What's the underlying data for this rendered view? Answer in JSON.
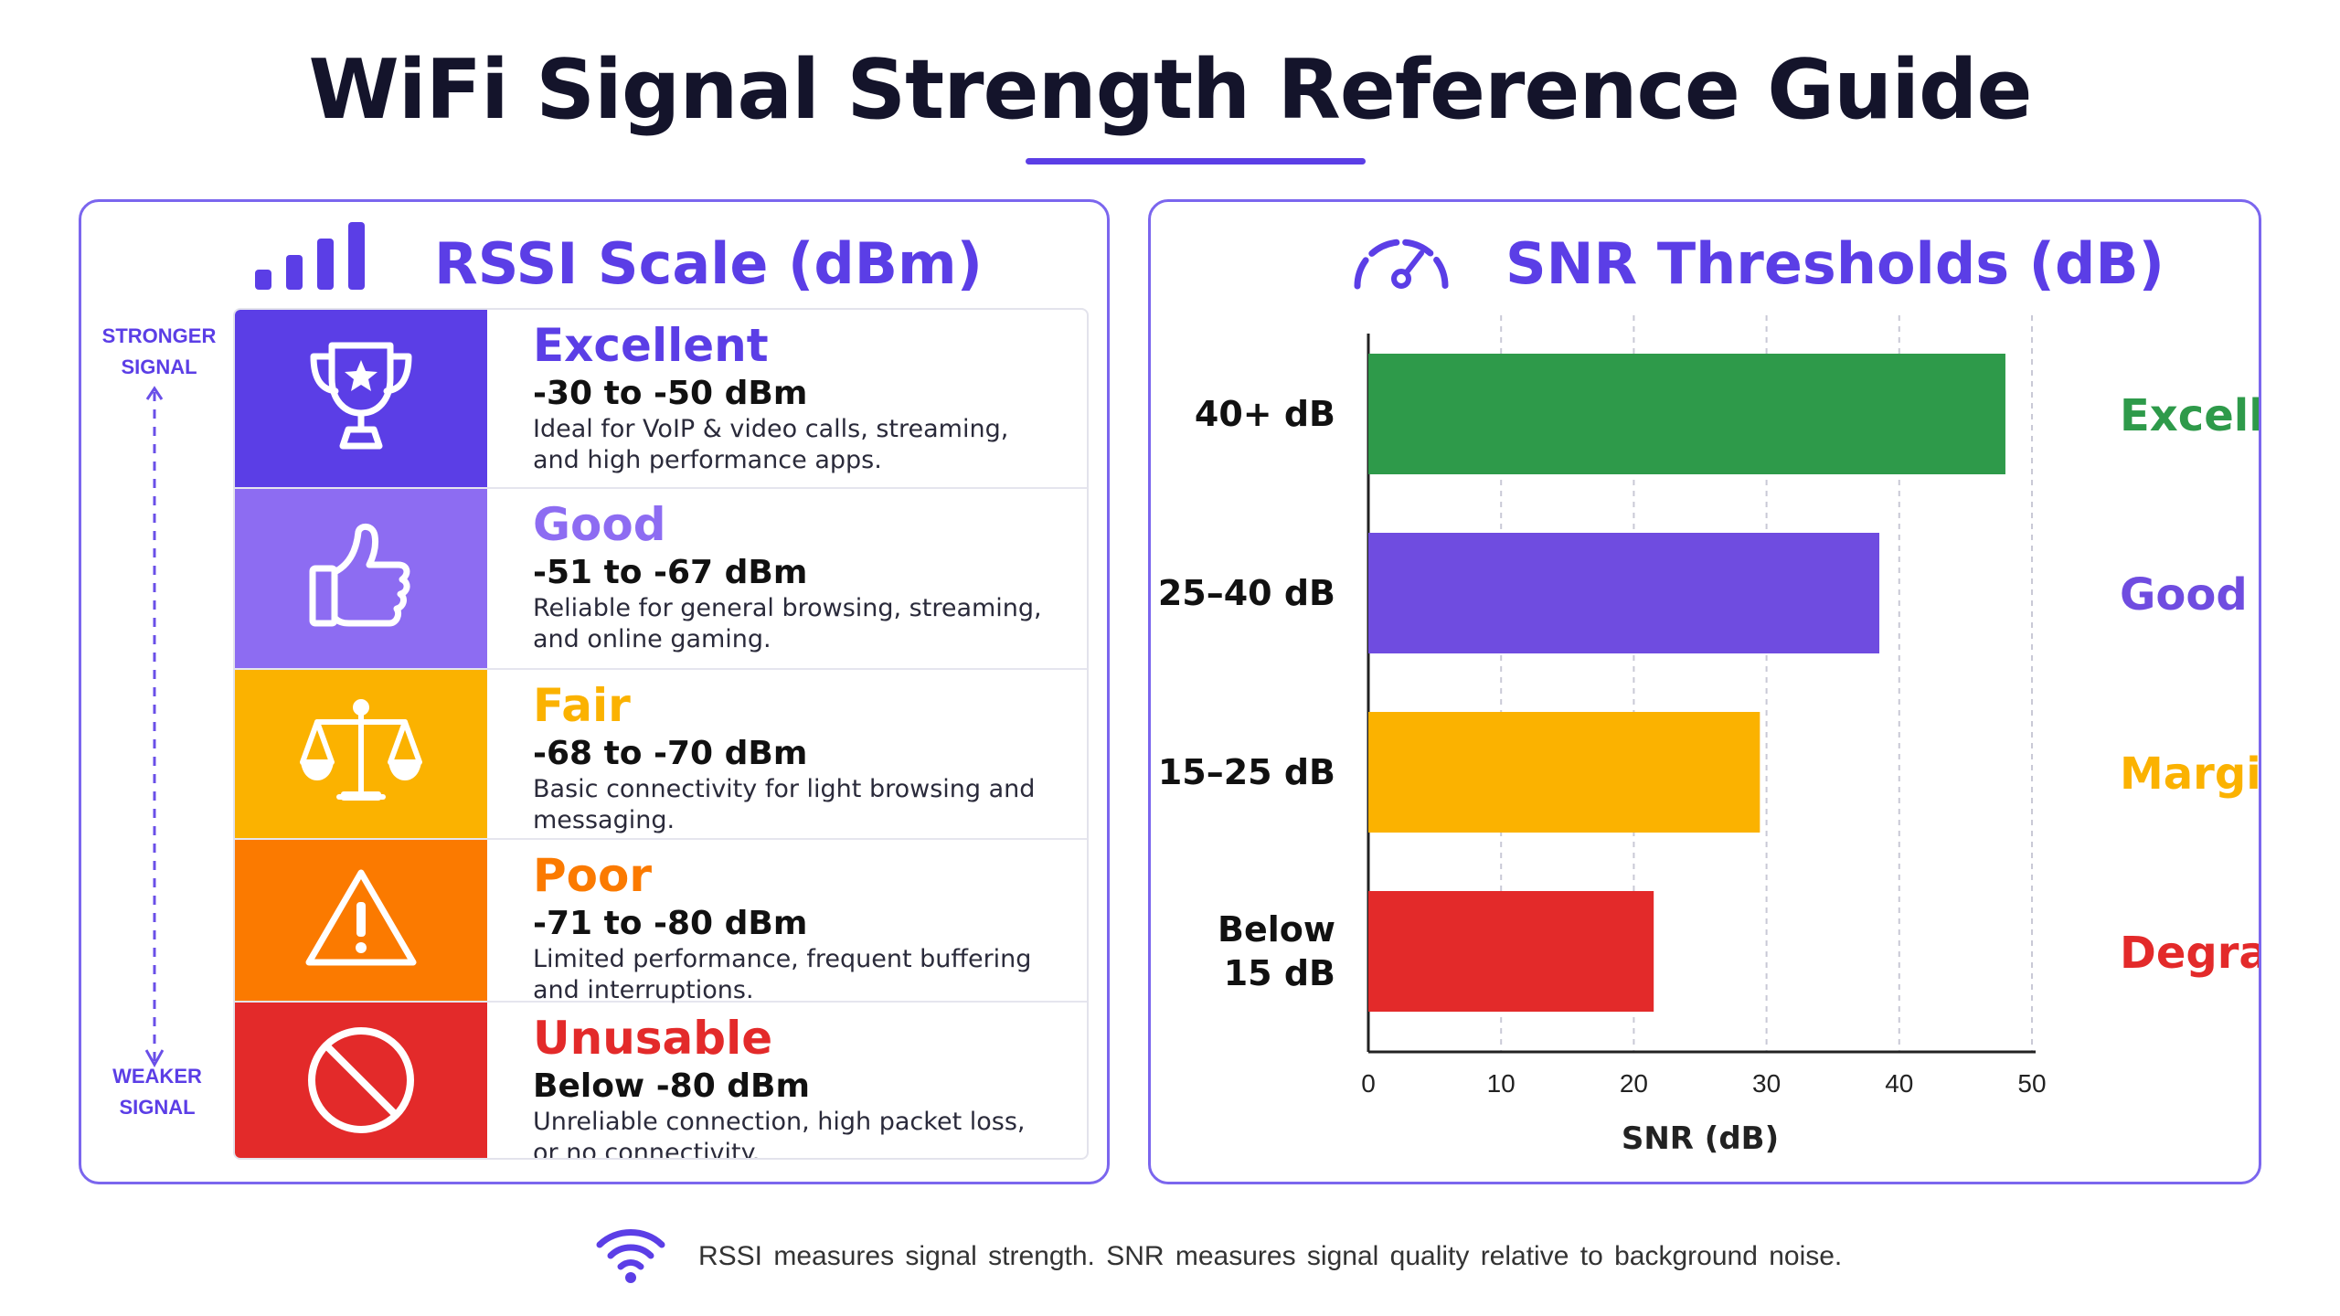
{
  "title": "WiFi Signal Strength Reference Guide",
  "rssi": {
    "heading": "RSSI Scale (dBm)",
    "stronger_label": "STRONGER SIGNAL",
    "weaker_label": "WEAKER SIGNAL",
    "levels": [
      {
        "name": "Excellent",
        "range": "-30 to -50 dBm",
        "description": "Ideal for VoIP & video calls, streaming, and high performance apps.",
        "icon": "trophy-icon",
        "color": "#5b3ee6"
      },
      {
        "name": "Good",
        "range": "-51 to -67 dBm",
        "description": "Reliable for general browsing, streaming, and online gaming.",
        "icon": "thumbs-up-icon",
        "color": "#8d6cf2"
      },
      {
        "name": "Fair",
        "range": "-68 to -70 dBm",
        "description": "Basic connectivity for light browsing and messaging.",
        "icon": "balance-scale-icon",
        "color": "#fbb200"
      },
      {
        "name": "Poor",
        "range": "-71 to -80 dBm",
        "description": "Limited performance, frequent buffering and interruptions.",
        "icon": "warning-icon",
        "color": "#fb7a00"
      },
      {
        "name": "Unusable",
        "range": "Below -80 dBm",
        "description": "Unreliable connection, high packet loss, or no connectivity.",
        "icon": "prohibited-icon",
        "color": "#e32a2a"
      }
    ]
  },
  "snr": {
    "heading": "SNR Thresholds (dB)"
  },
  "chart_data": {
    "type": "bar",
    "orientation": "horizontal",
    "title": "SNR Thresholds (dB)",
    "xlabel": "SNR (dB)",
    "ylabel": "",
    "xlim": [
      0,
      50
    ],
    "xticks": [
      0,
      10,
      20,
      30,
      40,
      50
    ],
    "grid": "vertical dashed",
    "categories": [
      "40+ dB",
      "25–40 dB",
      "15–25 dB",
      "Below 15 dB"
    ],
    "category_lines": [
      [
        "40+ dB"
      ],
      [
        "25–40 dB"
      ],
      [
        "15–25 dB"
      ],
      [
        "Below",
        "15 dB"
      ]
    ],
    "values": [
      48,
      38.5,
      29.5,
      21.5
    ],
    "labels": [
      "Excellent",
      "Good",
      "Marginal",
      "Degraded"
    ],
    "colors": [
      "#2e9a4a",
      "#6f4ce0",
      "#fbb200",
      "#e32a2a"
    ]
  },
  "footer": {
    "text": "RSSI measures signal strength. SNR measures  signal quality  relative  to  background  noise.",
    "icon": "wifi-icon"
  },
  "colors": {
    "accent": "#5b3ee6",
    "border": "#7b66ee"
  }
}
